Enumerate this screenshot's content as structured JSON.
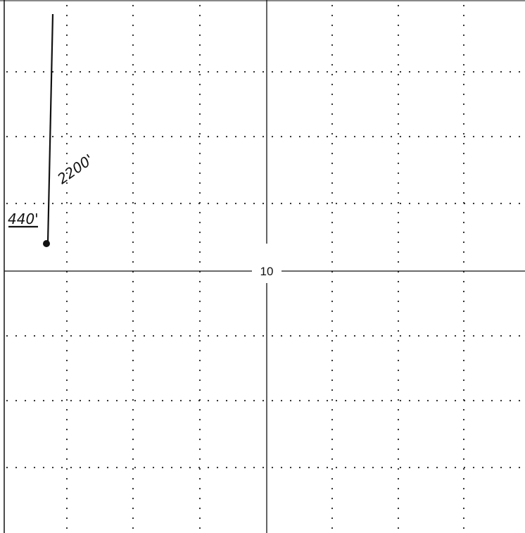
{
  "plat": {
    "section_number": "10",
    "well": {
      "footage_from_south": "2200'",
      "footage_from_west": "440'"
    },
    "colors": {
      "ink": "#111111",
      "paper": "#ffffff"
    }
  }
}
